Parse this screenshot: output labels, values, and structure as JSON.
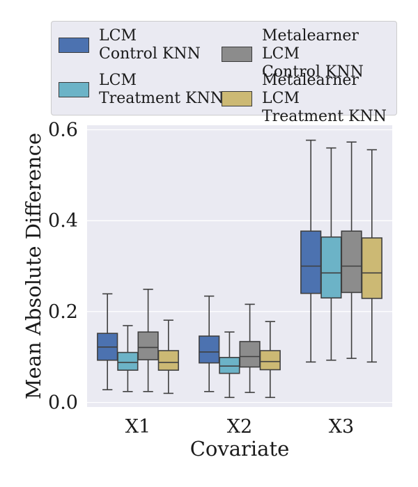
{
  "chart_data": {
    "type": "boxplot",
    "title": "",
    "xlabel": "Covariate",
    "ylabel": "Mean Absolute Difference",
    "categories": [
      "X1",
      "X2",
      "X3"
    ],
    "ylim": [
      -0.01,
      0.61
    ],
    "yticks": [
      0.0,
      0.2,
      0.4,
      0.6
    ],
    "ytick_labels": [
      "0.0",
      "0.2",
      "0.4",
      "0.6"
    ],
    "grid": true,
    "legend_position": "top",
    "series": [
      {
        "name_line1": "LCM",
        "name_line2": "Control KNN",
        "color": "#4c72b0",
        "boxes": [
          {
            "whisker_low": 0.028,
            "q1": 0.093,
            "median": 0.122,
            "q3": 0.152,
            "whisker_high": 0.239
          },
          {
            "whisker_low": 0.024,
            "q1": 0.087,
            "median": 0.111,
            "q3": 0.146,
            "whisker_high": 0.234
          },
          {
            "whisker_low": 0.089,
            "q1": 0.24,
            "median": 0.3,
            "q3": 0.377,
            "whisker_high": 0.577
          }
        ]
      },
      {
        "name_line1": "LCM",
        "name_line2": "Treatment KNN",
        "color": "#6cb3c7",
        "boxes": [
          {
            "whisker_low": 0.024,
            "q1": 0.071,
            "median": 0.088,
            "q3": 0.11,
            "whisker_high": 0.169
          },
          {
            "whisker_low": 0.011,
            "q1": 0.064,
            "median": 0.08,
            "q3": 0.099,
            "whisker_high": 0.155
          },
          {
            "whisker_low": 0.093,
            "q1": 0.23,
            "median": 0.285,
            "q3": 0.364,
            "whisker_high": 0.56
          }
        ]
      },
      {
        "name_line1": "Metalearner LCM",
        "name_line2": "Control KNN",
        "color": "#8c8c8c",
        "boxes": [
          {
            "whisker_low": 0.024,
            "q1": 0.094,
            "median": 0.121,
            "q3": 0.155,
            "whisker_high": 0.249
          },
          {
            "whisker_low": 0.022,
            "q1": 0.078,
            "median": 0.101,
            "q3": 0.134,
            "whisker_high": 0.216
          },
          {
            "whisker_low": 0.097,
            "q1": 0.242,
            "median": 0.3,
            "q3": 0.377,
            "whisker_high": 0.573
          }
        ]
      },
      {
        "name_line1": "Metalearner LCM",
        "name_line2": "Treatment KNN",
        "color": "#ccb974",
        "boxes": [
          {
            "whisker_low": 0.02,
            "q1": 0.071,
            "median": 0.088,
            "q3": 0.114,
            "whisker_high": 0.181
          },
          {
            "whisker_low": 0.011,
            "q1": 0.072,
            "median": 0.09,
            "q3": 0.114,
            "whisker_high": 0.178
          },
          {
            "whisker_low": 0.089,
            "q1": 0.229,
            "median": 0.285,
            "q3": 0.362,
            "whisker_high": 0.556
          }
        ]
      }
    ]
  }
}
